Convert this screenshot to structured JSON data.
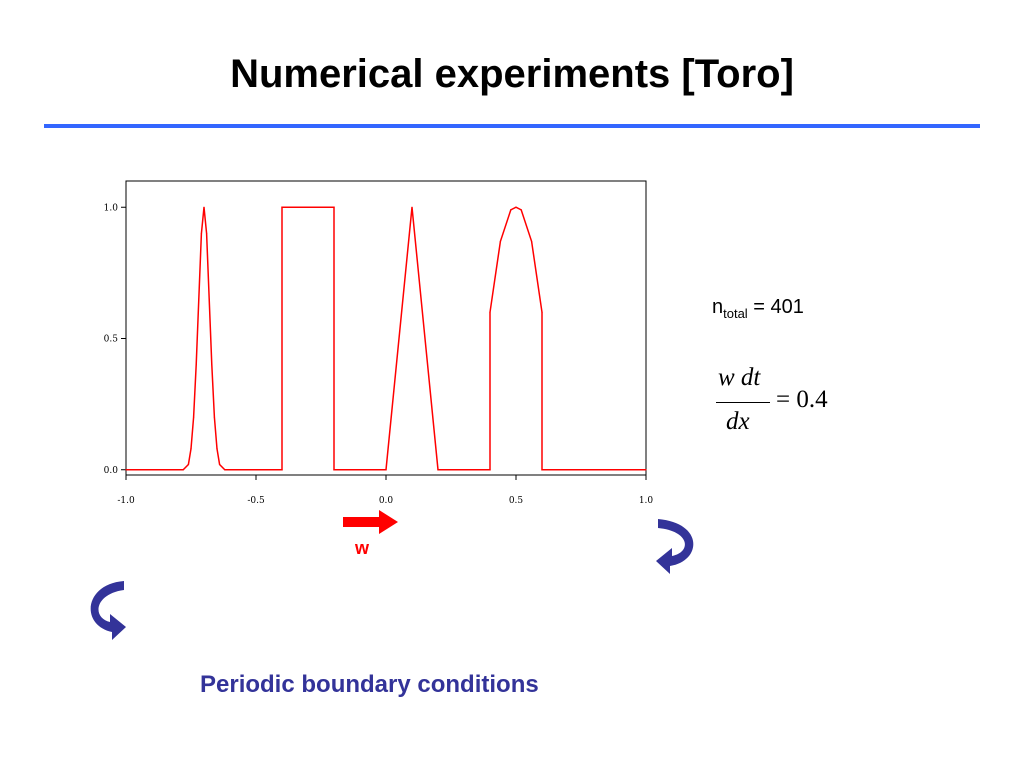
{
  "slide": {
    "title": "Numerical experiments [Toro]",
    "ntotal_base": "n",
    "ntotal_sub": "total",
    "ntotal_value": " = 401",
    "formula_numerator": "w dt",
    "formula_denominator": "dx",
    "formula_rhs": "= 0.4",
    "wind_label": "w",
    "caption": "Periodic boundary conditions"
  },
  "colors": {
    "title_rule": "#3366ff",
    "curve": "#ff0000",
    "arrow_red": "#ff0000",
    "arrow_navy": "#333399",
    "caption": "#333399"
  },
  "icons": [
    "right-arrow-icon",
    "curved-arrow-right-icon",
    "curved-arrow-left-icon"
  ],
  "chart_data": {
    "type": "line",
    "title": "",
    "xlabel": "",
    "ylabel": "",
    "xlim": [
      -1.0,
      1.0
    ],
    "ylim": [
      -0.02,
      1.1
    ],
    "x_ticks": [
      -1.0,
      -0.5,
      0.0,
      0.5,
      1.0
    ],
    "x_tick_labels": [
      "-1.0",
      "-0.5",
      "0.0",
      "0.5",
      "1.0"
    ],
    "y_ticks": [
      0.0,
      0.5,
      1.0
    ],
    "y_tick_labels": [
      "0.0",
      "0.5",
      "1.0"
    ],
    "grid": false,
    "legend": "none",
    "series": [
      {
        "x": [
          -1.0,
          -0.78,
          -0.76,
          -0.75,
          -0.74,
          -0.73,
          -0.72,
          -0.71,
          -0.7,
          -0.69,
          -0.68,
          -0.67,
          -0.66,
          -0.65,
          -0.64,
          -0.62,
          -0.4,
          -0.4,
          -0.2,
          -0.2,
          0.0,
          0.1,
          0.2,
          0.4,
          0.4,
          0.44,
          0.48,
          0.5,
          0.52,
          0.56,
          0.6,
          0.6,
          1.0
        ],
        "y": [
          0.0,
          0.0,
          0.02,
          0.08,
          0.2,
          0.4,
          0.65,
          0.9,
          1.0,
          0.9,
          0.65,
          0.4,
          0.2,
          0.08,
          0.02,
          0.0,
          0.0,
          1.0,
          1.0,
          0.0,
          0.0,
          1.0,
          0.0,
          0.0,
          0.6,
          0.87,
          0.99,
          1.0,
          0.99,
          0.87,
          0.6,
          0.0,
          0.0
        ]
      }
    ]
  }
}
